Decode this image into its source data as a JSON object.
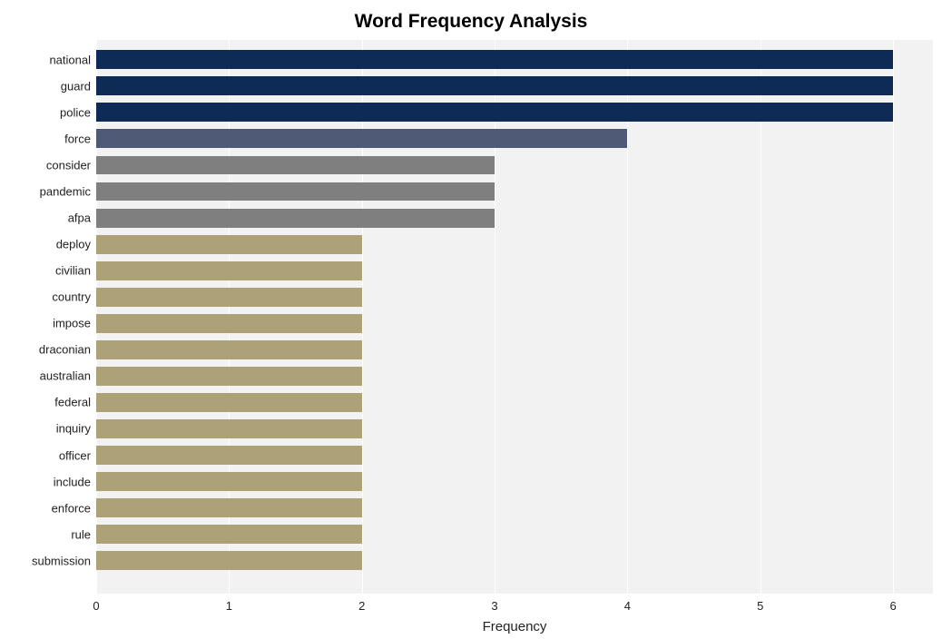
{
  "chart": {
    "type": "bar-horizontal",
    "title": "Word Frequency Analysis",
    "title_fontsize": 21,
    "title_fontweight": "bold",
    "title_color": "#000000",
    "background_color": "#ffffff",
    "plot_background_color": "#f2f2f2",
    "grid_color": "#ffffff",
    "grid_linewidth": 1,
    "x_axis": {
      "label": "Frequency",
      "label_fontsize": 15,
      "min": 0,
      "max": 6.3,
      "ticks": [
        0,
        1,
        2,
        3,
        4,
        5,
        6
      ],
      "tick_fontsize": 13
    },
    "y_axis": {
      "tick_fontsize": 13
    },
    "bar_height_ratio": 0.72,
    "categories": [
      "national",
      "guard",
      "police",
      "force",
      "consider",
      "pandemic",
      "afpa",
      "deploy",
      "civilian",
      "country",
      "impose",
      "draconian",
      "australian",
      "federal",
      "inquiry",
      "officer",
      "include",
      "enforce",
      "rule",
      "submission"
    ],
    "values": [
      6,
      6,
      6,
      4,
      3,
      3,
      3,
      2,
      2,
      2,
      2,
      2,
      2,
      2,
      2,
      2,
      2,
      2,
      2,
      2
    ],
    "bar_colors": [
      "#0e2b55",
      "#0e2b55",
      "#0e2b55",
      "#4f5a76",
      "#7f7f7f",
      "#7f7f7f",
      "#7f7f7f",
      "#aca177",
      "#aca177",
      "#aca177",
      "#aca177",
      "#aca177",
      "#aca177",
      "#aca177",
      "#aca177",
      "#aca177",
      "#aca177",
      "#aca177",
      "#aca177",
      "#aca177"
    ]
  }
}
